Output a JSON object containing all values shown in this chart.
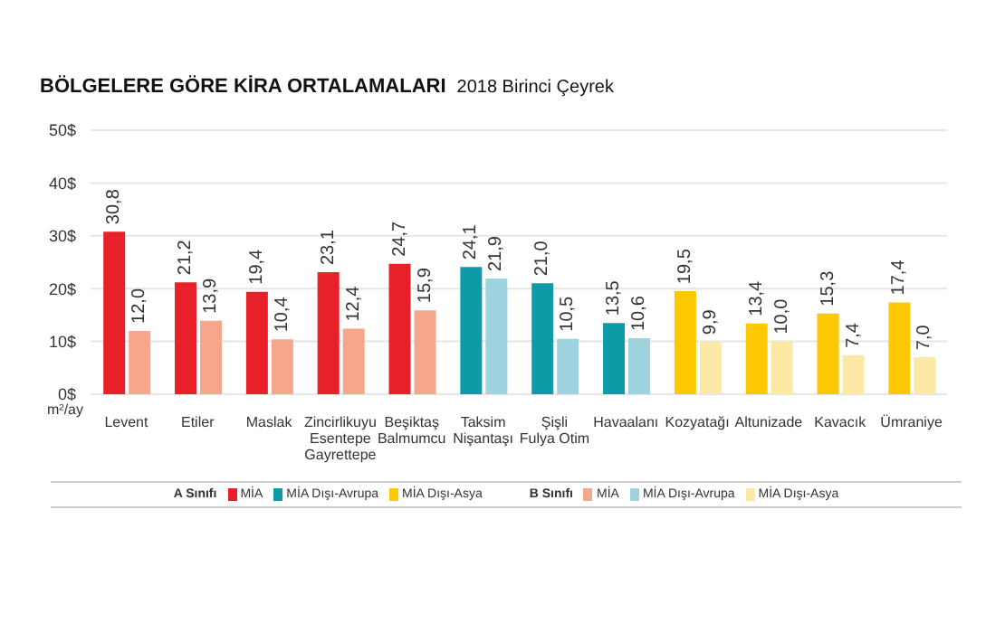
{
  "chart_data": {
    "type": "bar",
    "title": "BÖLGELERE GÖRE KİRA ORTALAMALARI",
    "subtitle": "2018 Birinci Çeyrek",
    "ylabel": "m²/ay",
    "grid": "y",
    "legend": "bottom",
    "categories": [
      "Levent",
      "Etiler",
      "Maslak",
      "Zincirlikuyu\nEsentepe\nGayrettepe",
      "Beşiktaş\nBalmumcu",
      "Taksim\nNişantaşı",
      "Şişli\nFulya Otim",
      "Havaalanı",
      "Kozyatağı",
      "Altunizade",
      "Kavacık",
      "Ümraniye"
    ],
    "ylim": [
      0,
      50
    ],
    "yticks": [
      {
        "value": 0,
        "label": "0$"
      },
      {
        "value": 10,
        "label": "10$"
      },
      {
        "value": 20,
        "label": "20$"
      },
      {
        "value": 30,
        "label": "30$"
      },
      {
        "value": 40,
        "label": "40$"
      },
      {
        "value": 50,
        "label": "50$"
      }
    ],
    "annotations": [
      "A Sınıfı",
      "B Sınıfı"
    ],
    "series": [
      {
        "name": "MİA",
        "color": "#e8202a",
        "values": [
          30.8,
          21.2,
          19.4,
          23.1,
          24.7,
          null,
          null,
          null,
          null,
          null,
          null,
          null
        ],
        "value_labels": [
          "30,8",
          "21,2",
          "19,4",
          "23,1",
          "24,7",
          null,
          null,
          null,
          null,
          null,
          null,
          null
        ]
      },
      {
        "name": "MİA Dışı-Avrupa",
        "color": "#0e9aa7",
        "values": [
          null,
          null,
          null,
          null,
          null,
          24.1,
          21.0,
          13.5,
          null,
          null,
          null,
          null
        ],
        "value_labels": [
          null,
          null,
          null,
          null,
          null,
          "24,1",
          "21,0",
          "13,5",
          null,
          null,
          null,
          null
        ]
      },
      {
        "name": "MİA Dışı-Asya",
        "color": "#fcc800",
        "values": [
          null,
          null,
          null,
          null,
          null,
          null,
          null,
          null,
          19.5,
          13.4,
          15.3,
          17.4
        ],
        "value_labels": [
          null,
          null,
          null,
          null,
          null,
          null,
          null,
          null,
          "19,5",
          "13,4",
          "15,3",
          "17,4"
        ]
      },
      {
        "name": "MİA",
        "color": "#f5a68c",
        "values": [
          12.0,
          13.9,
          10.4,
          12.4,
          15.9,
          null,
          null,
          null,
          null,
          null,
          null,
          null
        ],
        "value_labels": [
          "12,0",
          "13,9",
          "10,4",
          "12,4",
          "15,9",
          null,
          null,
          null,
          null,
          null,
          null,
          null
        ]
      },
      {
        "name": "MİA Dışı-Avrupa",
        "color": "#9fd3df",
        "values": [
          null,
          null,
          null,
          null,
          null,
          21.9,
          10.5,
          10.6,
          null,
          null,
          null,
          null
        ],
        "value_labels": [
          null,
          null,
          null,
          null,
          null,
          "21,9",
          "10,5",
          "10,6",
          null,
          null,
          null,
          null
        ]
      },
      {
        "name": "MİA Dışı-Asya",
        "color": "#fde9a6",
        "values": [
          null,
          null,
          null,
          null,
          null,
          null,
          null,
          null,
          9.9,
          10.0,
          7.4,
          7.0
        ],
        "value_labels": [
          null,
          null,
          null,
          null,
          null,
          null,
          null,
          null,
          "9,9",
          "10,0",
          "7,4",
          "7,0"
        ]
      }
    ]
  }
}
